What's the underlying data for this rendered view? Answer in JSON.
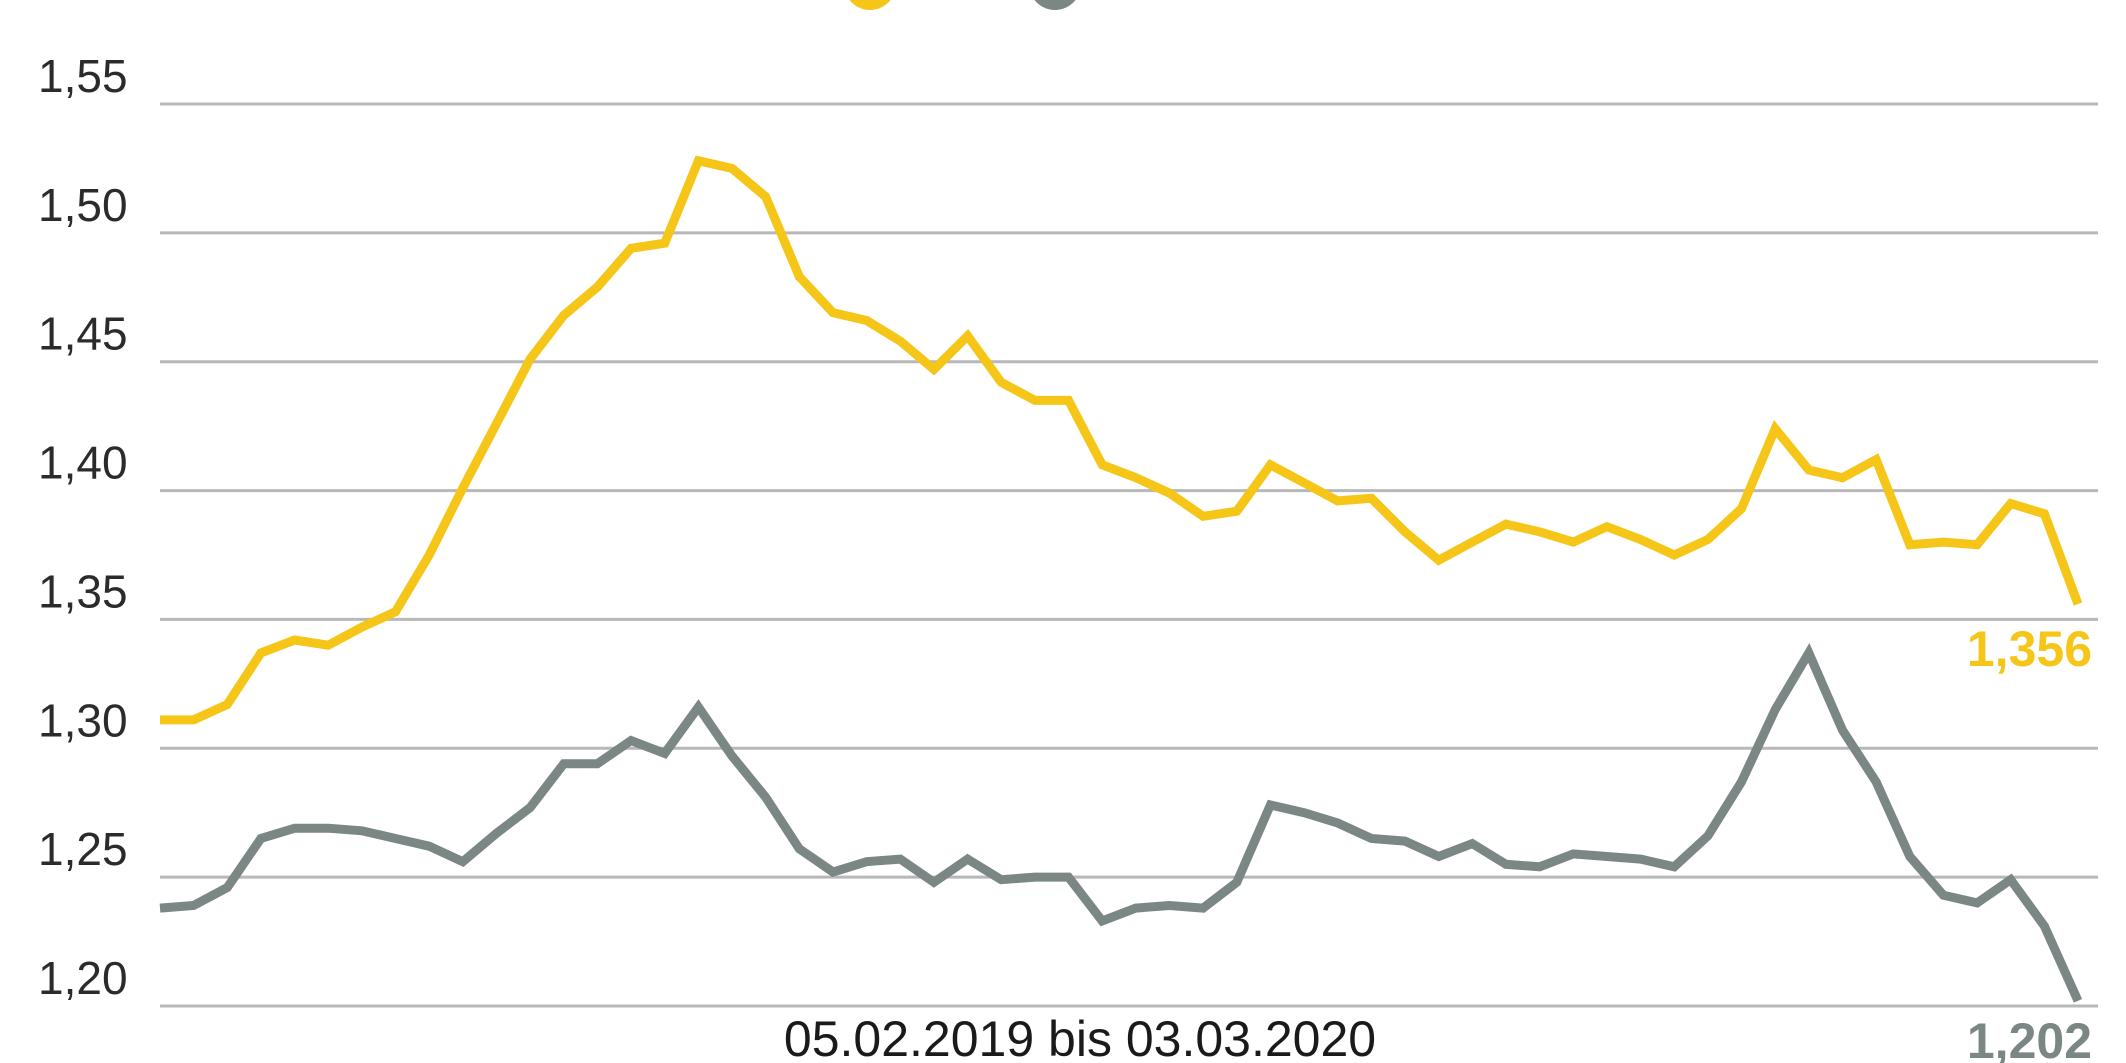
{
  "chart_data": {
    "type": "line",
    "xlabel": "05.02.2019 bis 03.03.2020",
    "ylabel": "",
    "ylim": [
      1.2,
      1.55
    ],
    "yticks": [
      1.2,
      1.25,
      1.3,
      1.35,
      1.4,
      1.45,
      1.5,
      1.55
    ],
    "ytick_labels": [
      "1,20",
      "1,25",
      "1,30",
      "1,35",
      "1,40",
      "1,45",
      "1,50",
      "1,55"
    ],
    "grid": true,
    "colors": {
      "yellow": "#f5c518",
      "gray": "#7a8785",
      "grid": "#b8b8b8"
    },
    "series": [
      {
        "color": "#f5c518",
        "end_label": "1,356",
        "values": [
          1.311,
          1.311,
          1.317,
          1.337,
          1.342,
          1.34,
          1.347,
          1.353,
          1.375,
          1.401,
          1.426,
          1.451,
          1.468,
          1.479,
          1.494,
          1.496,
          1.528,
          1.525,
          1.514,
          1.483,
          1.469,
          1.466,
          1.458,
          1.447,
          1.46,
          1.442,
          1.435,
          1.435,
          1.41,
          1.405,
          1.399,
          1.39,
          1.392,
          1.41,
          1.403,
          1.396,
          1.397,
          1.384,
          1.373,
          1.38,
          1.387,
          1.384,
          1.38,
          1.386,
          1.381,
          1.375,
          1.381,
          1.393,
          1.424,
          1.408,
          1.405,
          1.412,
          1.379,
          1.38,
          1.379,
          1.395,
          1.391,
          1.356
        ]
      },
      {
        "color": "#7a8785",
        "end_label": "1,202",
        "values": [
          1.238,
          1.239,
          1.246,
          1.265,
          1.269,
          1.269,
          1.268,
          1.265,
          1.262,
          1.256,
          1.267,
          1.277,
          1.294,
          1.294,
          1.303,
          1.298,
          1.316,
          1.297,
          1.281,
          1.261,
          1.252,
          1.256,
          1.257,
          1.248,
          1.257,
          1.249,
          1.25,
          1.25,
          1.233,
          1.238,
          1.239,
          1.238,
          1.248,
          1.278,
          1.275,
          1.271,
          1.265,
          1.264,
          1.258,
          1.263,
          1.255,
          1.254,
          1.259,
          1.258,
          1.257,
          1.254,
          1.266,
          1.287,
          1.315,
          1.337,
          1.307,
          1.287,
          1.258,
          1.243,
          1.24,
          1.249,
          1.231,
          1.202
        ]
      }
    ]
  }
}
